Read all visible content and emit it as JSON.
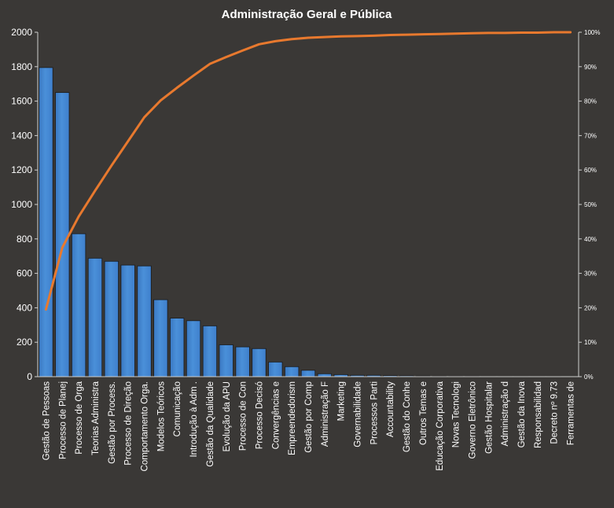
{
  "chart_data": {
    "type": "bar",
    "title": "Administração  Geral  e Pública",
    "categories": [
      "Gestão de Pessoas",
      "Processo de Planej",
      "Processo de Orga",
      "Teorias Administra",
      "Gestão por Process.",
      "Processo de Direção",
      "Comportamento Orga.",
      "Modelos Teóricos",
      "Comunicação",
      "Introdução à Adm .",
      "Gestão da Qualidade",
      "Evolução da APU",
      "Processo de Con",
      "Processo Decisó",
      "Convergências e",
      "Empreendedorism",
      "Gestão por Comp",
      "Administração F",
      "Marketing",
      "Governabilidade",
      "Processos Parti",
      "Accountability",
      "Gestão do Conhe",
      "Outros Temas e",
      "Educação Corporativa",
      "Novas Tecnologi",
      "Governo Eletrônico",
      "Gestão Hospitalar",
      "Administração d",
      "Gestão da Inova",
      "Responsabilidad",
      "Decreto nº 9.73",
      "Ferramentas de"
    ],
    "series": [
      {
        "type": "bar",
        "axis": "left",
        "color": "#4a90d9",
        "values": [
          1795,
          1650,
          830,
          688,
          670,
          648,
          643,
          447,
          340,
          325,
          295,
          185,
          173,
          163,
          85,
          58,
          37,
          17,
          12,
          8,
          8,
          6,
          5,
          4,
          3,
          2,
          2,
          1,
          1,
          1,
          1,
          1,
          0
        ]
      },
      {
        "type": "line",
        "axis": "right",
        "color": "#e8792e",
        "values": [
          19.5,
          37.5,
          46.5,
          54.0,
          61.3,
          68.3,
          75.3,
          80.2,
          83.9,
          87.4,
          90.8,
          92.8,
          94.7,
          96.5,
          97.4,
          98.0,
          98.4,
          98.6,
          98.8,
          98.9,
          99.0,
          99.2,
          99.3,
          99.4,
          99.5,
          99.6,
          99.7,
          99.8,
          99.8,
          99.9,
          99.9,
          100.0,
          100.0
        ]
      }
    ],
    "y_left": {
      "min": 0,
      "max": 2000,
      "ticks": [
        "0",
        "200",
        "400",
        "600",
        "800",
        "1000",
        "1200",
        "1400",
        "1600",
        "1800",
        "2000"
      ]
    },
    "y_right": {
      "min": 0,
      "max": 100,
      "ticks": [
        "0%",
        "10%",
        "20%",
        "30%",
        "40%",
        "50%",
        "60%",
        "70%",
        "80%",
        "90%",
        "100%"
      ]
    },
    "grid": false,
    "legend": "none",
    "colors": {
      "background": "#3a3836",
      "text": "#ffffff",
      "axis": "#cfcfcf",
      "bar_edge": "#1a1a1a"
    }
  }
}
